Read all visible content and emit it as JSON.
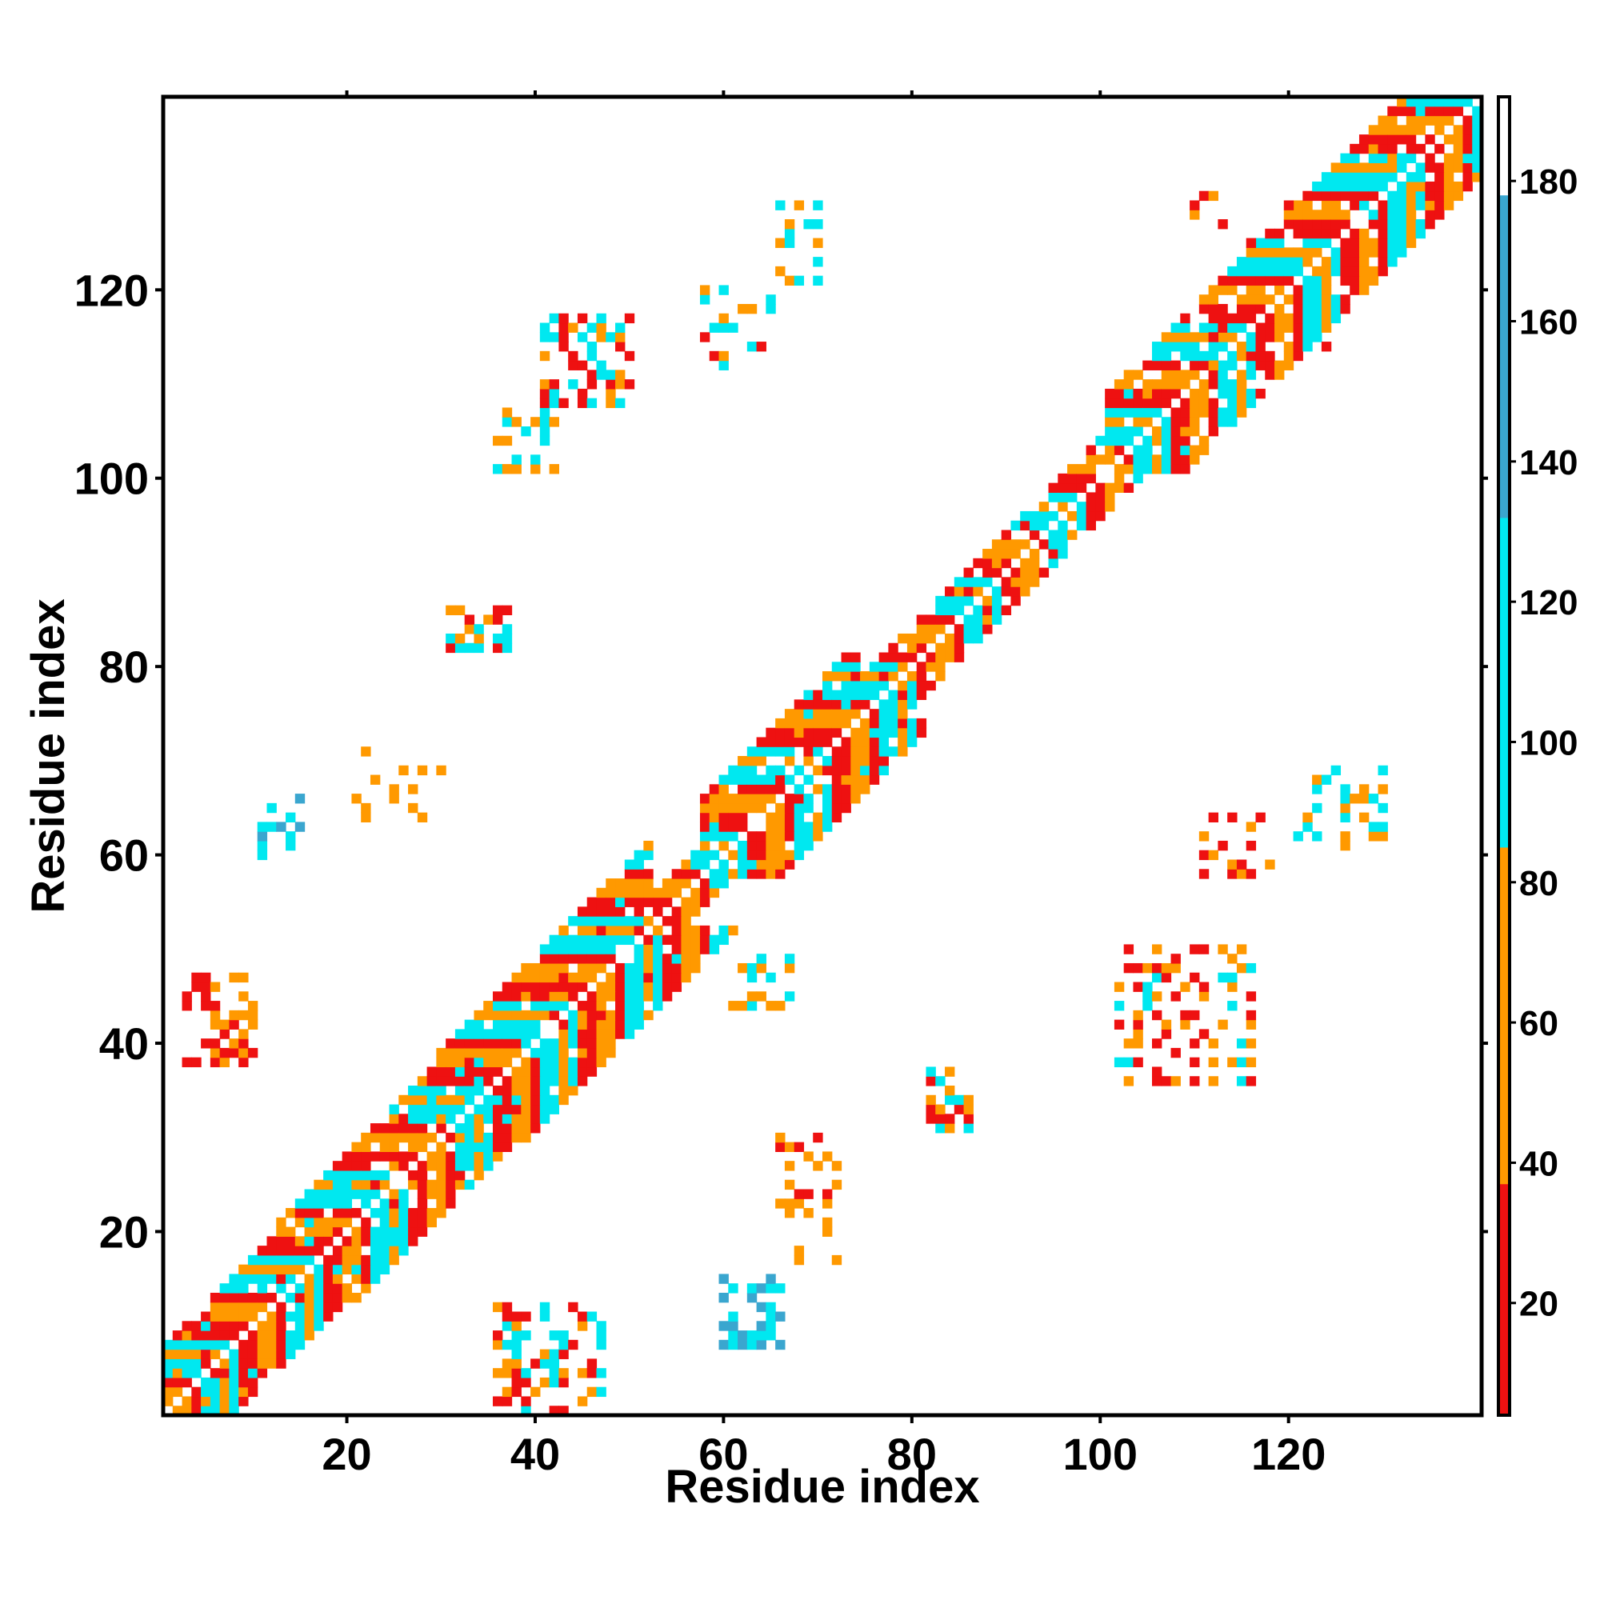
{
  "chart_data": {
    "type": "heatmap",
    "title": "",
    "xlabel": "Residue index",
    "ylabel": "Residue index",
    "xlim": [
      1,
      140
    ],
    "ylim": [
      1,
      140
    ],
    "x_ticks": [
      20,
      40,
      60,
      80,
      100,
      120
    ],
    "y_ticks": [
      20,
      40,
      60,
      80,
      100,
      120
    ],
    "colorbar": {
      "range": [
        4,
        192
      ],
      "ticks": [
        20,
        40,
        60,
        80,
        100,
        120,
        140,
        160,
        180
      ],
      "segments": [
        {
          "from": 4,
          "to": 37,
          "color": "#ee1111"
        },
        {
          "from": 37,
          "to": 85,
          "color": "#ff9900"
        },
        {
          "from": 85,
          "to": 132,
          "color": "#00e8f0"
        },
        {
          "from": 132,
          "to": 178,
          "color": "#3aa6cf"
        },
        {
          "from": 178,
          "to": 192,
          "color": "#ffffff"
        }
      ]
    },
    "band": {
      "symmetric": true,
      "segments": [
        {
          "from": 1,
          "to": 12,
          "width": 7
        },
        {
          "from": 12,
          "to": 29,
          "width": 8
        },
        {
          "from": 29,
          "to": 52,
          "width": 9
        },
        {
          "from": 52,
          "to": 57,
          "width": 3
        },
        {
          "from": 57,
          "to": 74,
          "width": 8
        },
        {
          "from": 74,
          "to": 100,
          "width": 4
        },
        {
          "from": 100,
          "to": 140,
          "width": 8
        }
      ],
      "pattern": [
        "#ee1111",
        "#ff9900",
        "#ff9900",
        "#ee1111",
        "#00e8f0",
        "#00e8f0",
        "#ff9900",
        "#00e8f0",
        "#ee1111"
      ]
    },
    "clusters": [
      {
        "x": [
          3,
          10
        ],
        "y": [
          38,
          47
        ],
        "colors": [
          "#ee1111",
          "#ff9900"
        ],
        "density": 0.45
      },
      {
        "x": [
          11,
          15
        ],
        "y": [
          60,
          67
        ],
        "colors": [
          "#00e8f0",
          "#3aa6cf"
        ],
        "density": 0.4
      },
      {
        "x": [
          31,
          37
        ],
        "y": [
          82,
          86
        ],
        "colors": [
          "#ee1111",
          "#ff9900",
          "#00e8f0"
        ],
        "density": 0.65
      },
      {
        "x": [
          36,
          42
        ],
        "y": [
          101,
          107
        ],
        "colors": [
          "#00e8f0",
          "#ff9900"
        ],
        "density": 0.3
      },
      {
        "x": [
          41,
          50
        ],
        "y": [
          108,
          117
        ],
        "colors": [
          "#ee1111",
          "#ff9900",
          "#00e8f0"
        ],
        "density": 0.4
      },
      {
        "x": [
          58,
          65
        ],
        "y": [
          112,
          120
        ],
        "colors": [
          "#ff9900",
          "#ee1111",
          "#00e8f0"
        ],
        "density": 0.25
      },
      {
        "x": [
          66,
          70
        ],
        "y": [
          121,
          131
        ],
        "colors": [
          "#00e8f0",
          "#ff9900"
        ],
        "density": 0.3
      },
      {
        "x": [
          36,
          47
        ],
        "y": [
          1,
          12
        ],
        "colors": [
          "#ee1111",
          "#ff9900",
          "#00e8f0"
        ],
        "density": 0.4
      },
      {
        "x": [
          60,
          66
        ],
        "y": [
          8,
          15
        ],
        "colors": [
          "#00e8f0",
          "#3aa6cf"
        ],
        "density": 0.4
      },
      {
        "x": [
          66,
          72
        ],
        "y": [
          17,
          30
        ],
        "colors": [
          "#ff9900",
          "#ee1111"
        ],
        "density": 0.2
      },
      {
        "x": [
          82,
          86
        ],
        "y": [
          31,
          37
        ],
        "colors": [
          "#ee1111",
          "#ff9900",
          "#00e8f0"
        ],
        "density": 0.6
      },
      {
        "x": [
          102,
          116
        ],
        "y": [
          36,
          50
        ],
        "colors": [
          "#ee1111",
          "#ff9900",
          "#00e8f0"
        ],
        "density": 0.3
      },
      {
        "x": [
          111,
          118
        ],
        "y": [
          58,
          64
        ],
        "colors": [
          "#ff9900",
          "#ee1111"
        ],
        "density": 0.3
      },
      {
        "x": [
          121,
          130
        ],
        "y": [
          61,
          69
        ],
        "colors": [
          "#00e8f0",
          "#ff9900"
        ],
        "density": 0.25
      },
      {
        "x": [
          110,
          124
        ],
        "y": [
          112,
          130
        ],
        "colors": [
          "#ff9900",
          "#ee1111"
        ],
        "density": 0.1
      },
      {
        "x": [
          61,
          67
        ],
        "y": [
          44,
          49
        ],
        "colors": [
          "#ff9900",
          "#00e8f0"
        ],
        "density": 0.3
      },
      {
        "x": [
          21,
          30
        ],
        "y": [
          64,
          73
        ],
        "colors": [
          "#ff9900"
        ],
        "density": 0.2
      }
    ],
    "grid": false,
    "legend": "colorbar-right"
  }
}
